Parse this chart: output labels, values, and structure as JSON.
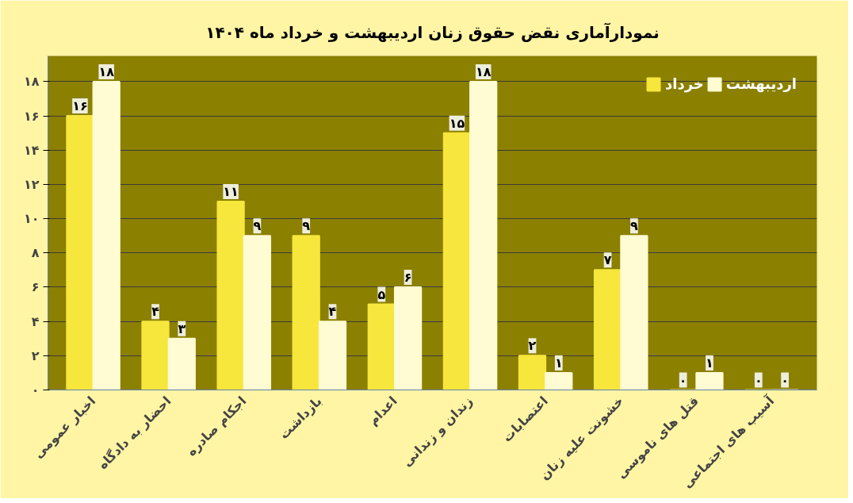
{
  "chart_data": {
    "type": "bar",
    "title": "نمودارآماری نقض حقوق زنان اردیبهشت و خرداد ماه ۱۴۰۴",
    "categories": [
      "اخبار عمومی",
      "احضار به دادگاه",
      "اجکام صادره",
      "بازداشت",
      "اعدام",
      "زندان و زندانی",
      "اعتصابات",
      "خشونت علیه زنان",
      "قتل های ناموسی",
      "آسیب های اجتماعی"
    ],
    "series": [
      {
        "name": "خرداد",
        "color": "#f7e63c",
        "values": [
          16,
          4,
          11,
          9,
          5,
          15,
          2,
          7,
          0,
          0
        ],
        "value_labels": [
          "۱۶",
          "۴",
          "۱۱",
          "۹",
          "۵",
          "۱۵",
          "۲",
          "۷",
          "۰",
          "۰"
        ]
      },
      {
        "name": "اردیبهشت",
        "color": "#fffbd2",
        "values": [
          18,
          3,
          9,
          4,
          6,
          18,
          1,
          9,
          1,
          0
        ],
        "value_labels": [
          "۱۸",
          "۳",
          "۹",
          "۴",
          "۶",
          "۱۸",
          "۱",
          "۹",
          "۱",
          "۰"
        ]
      }
    ],
    "ylim": [
      0,
      19.5
    ],
    "yticks": [
      {
        "value": 0,
        "label": "۰"
      },
      {
        "value": 2,
        "label": "۲"
      },
      {
        "value": 4,
        "label": "۴"
      },
      {
        "value": 6,
        "label": "۶"
      },
      {
        "value": 8,
        "label": "۸"
      },
      {
        "value": 10,
        "label": "۱۰"
      },
      {
        "value": 12,
        "label": "۱۲"
      },
      {
        "value": 14,
        "label": "۱۴"
      },
      {
        "value": 16,
        "label": "۱۶"
      },
      {
        "value": 18,
        "label": "۱۸"
      }
    ],
    "grid": "y",
    "legend": "top right"
  }
}
